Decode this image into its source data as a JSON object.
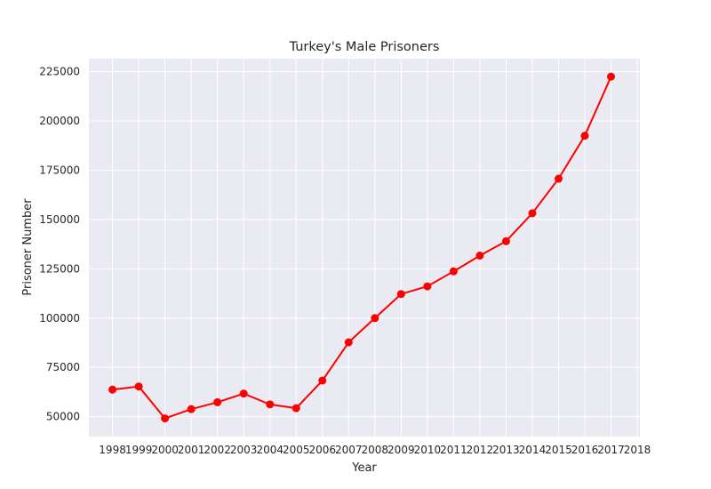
{
  "chart_data": {
    "type": "line",
    "title": "Turkey's Male Prisoners",
    "xlabel": "Year",
    "ylabel": "Prisoner Number",
    "x": [
      1998,
      1999,
      2000,
      2001,
      2002,
      2003,
      2004,
      2005,
      2006,
      2007,
      2008,
      2009,
      2010,
      2011,
      2012,
      2013,
      2014,
      2015,
      2016,
      2017
    ],
    "xticks": [
      "1998",
      "1999",
      "2000",
      "2001",
      "2002",
      "2003",
      "2004",
      "2005",
      "2006",
      "2007",
      "2008",
      "2009",
      "2010",
      "2011",
      "2012",
      "2013",
      "2014",
      "2015",
      "2016",
      "2017",
      "2018"
    ],
    "xlim": [
      1997.1,
      2018.1
    ],
    "series": [
      {
        "values": [
          63700,
          65300,
          49100,
          53800,
          57300,
          61700,
          56200,
          54300,
          68300,
          87700,
          100000,
          112200,
          116100,
          123700,
          131700,
          139000,
          153200,
          170700,
          192500,
          222500
        ]
      }
    ],
    "yticks": [
      50000,
      75000,
      100000,
      125000,
      150000,
      175000,
      200000,
      225000
    ],
    "ylim": [
      39900,
      231600
    ],
    "grid": true,
    "legend": "none",
    "colors": {
      "line": "#ff0000",
      "plot_background": "#eaeaf2",
      "grid": "#ffffff"
    }
  }
}
